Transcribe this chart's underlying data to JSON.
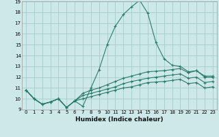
{
  "xlabel": "Humidex (Indice chaleur)",
  "bg_color": "#cce8e8",
  "grid_color": "#aacfcf",
  "line_color": "#2a7a6a",
  "x_min": 0,
  "x_max": 23,
  "y_min": 9,
  "y_max": 19,
  "series": [
    [
      10.8,
      10.0,
      9.5,
      9.7,
      10.0,
      9.2,
      9.8,
      9.3,
      11.0,
      12.7,
      15.0,
      16.7,
      17.8,
      18.5,
      19.1,
      17.9,
      15.2,
      13.7,
      13.1,
      13.0,
      12.5,
      12.6,
      12.0,
      12.0
    ],
    [
      10.8,
      10.0,
      9.5,
      9.7,
      10.0,
      9.2,
      9.8,
      10.5,
      10.8,
      11.0,
      11.3,
      11.6,
      11.9,
      12.1,
      12.3,
      12.5,
      12.55,
      12.6,
      12.7,
      12.8,
      12.4,
      12.6,
      12.1,
      12.1
    ],
    [
      10.8,
      10.0,
      9.5,
      9.7,
      10.0,
      9.2,
      9.8,
      10.3,
      10.5,
      10.7,
      10.9,
      11.1,
      11.4,
      11.6,
      11.75,
      11.9,
      12.0,
      12.1,
      12.2,
      12.3,
      11.9,
      12.0,
      11.5,
      11.6
    ],
    [
      10.8,
      10.0,
      9.5,
      9.7,
      10.0,
      9.2,
      9.8,
      10.0,
      10.2,
      10.4,
      10.6,
      10.8,
      11.0,
      11.1,
      11.3,
      11.5,
      11.55,
      11.6,
      11.7,
      11.8,
      11.4,
      11.5,
      11.0,
      11.1
    ]
  ]
}
